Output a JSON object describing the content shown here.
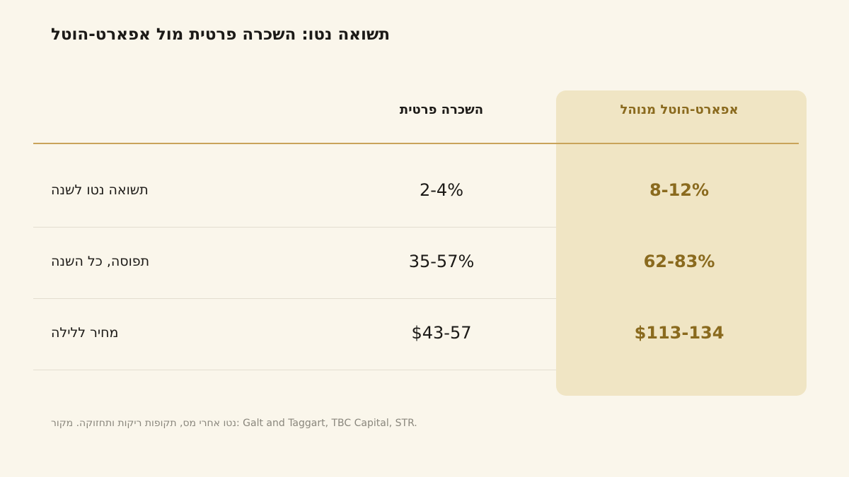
{
  "title": "תשואה נטו: השכרה פרטית מול אפארט-הוטל",
  "columns": {
    "standard": "השכרה פרטית",
    "premium": "אפארט-הוטל מנוהל"
  },
  "rows": [
    {
      "label": "תשואה נטו לשנה",
      "standard": "2-4%",
      "premium": "8-12%"
    },
    {
      "label": "תפוסה, כל השנה",
      "standard": "35-57%",
      "premium": "62-83%"
    },
    {
      "label": "מחיר ללילה",
      "standard": "$43-57",
      "premium": "$113-134"
    }
  ],
  "footnote": "נטו אחרי מס, תקופות ריקות ותחזוקה. מקור: Galt and Taggart, TBC Capital, STR.",
  "colors": {
    "background": "#faf6eb",
    "panel": "#f0e5c4",
    "accent": "#8a6a1e",
    "rule": "#c9a35a",
    "text": "#1c1a17",
    "muted": "#8a877d"
  }
}
